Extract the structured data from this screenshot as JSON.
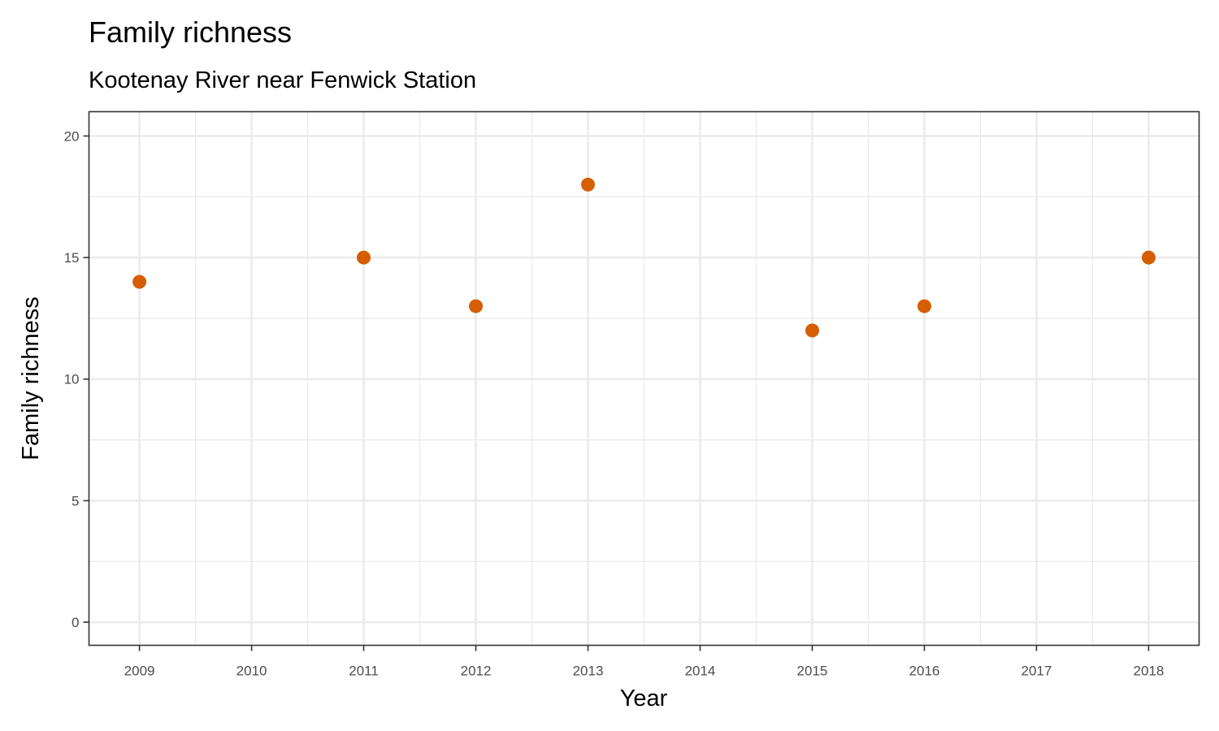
{
  "chart_data": {
    "type": "scatter",
    "title": "Family richness",
    "subtitle": "Kootenay River near Fenwick Station",
    "xlabel": "Year",
    "ylabel": "Family richness",
    "x_ticks": [
      "2009",
      "2010",
      "2011",
      "2012",
      "2013",
      "2014",
      "2015",
      "2016",
      "2017",
      "2018"
    ],
    "y_ticks": [
      "0",
      "5",
      "10",
      "15",
      "20"
    ],
    "xlim": [
      2008.55,
      2018.45
    ],
    "ylim": [
      -0.95,
      21
    ],
    "grid": true,
    "legend": "none",
    "point_color": "#D55E00",
    "points": [
      {
        "x": 2009,
        "y": 14
      },
      {
        "x": 2011,
        "y": 15
      },
      {
        "x": 2012,
        "y": 13
      },
      {
        "x": 2013,
        "y": 18
      },
      {
        "x": 2015,
        "y": 12
      },
      {
        "x": 2016,
        "y": 13
      },
      {
        "x": 2018,
        "y": 15
      }
    ]
  }
}
